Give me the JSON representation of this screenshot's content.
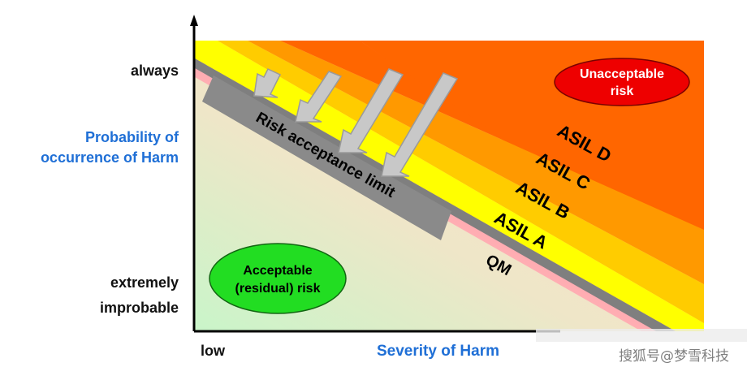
{
  "y_axis": {
    "top_label": "always",
    "title_line1": "Probability of",
    "title_line2": "occurrence of Harm",
    "bottom_label_line1": "extremely",
    "bottom_label_line2": "improbable"
  },
  "x_axis": {
    "left_label": "low",
    "title": "Severity of Harm"
  },
  "zones": {
    "unacceptable_line1": "Unacceptable",
    "unacceptable_line2": "risk",
    "acceptable_line1": "Acceptable",
    "acceptable_line2": "(residual) risk"
  },
  "bands": [
    "ASIL D",
    "ASIL C",
    "ASIL B",
    "ASIL A",
    "QM"
  ],
  "limit_label": "Risk acceptance limit",
  "watermark": "搜狐号@梦雪科技",
  "colors": {
    "asil_d": "#ff6600",
    "asil_c": "#ff9900",
    "asil_b": "#ffcc00",
    "asil_a": "#ffff00",
    "limit_line": "#808080",
    "unacceptable": "#ee0000",
    "acceptable": "#22dd22",
    "axis_title": "#1f6fd6"
  }
}
